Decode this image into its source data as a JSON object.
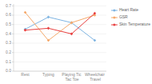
{
  "chart_data": {
    "type": "line",
    "categories": [
      "Rest",
      "Typing",
      "Playing Tic Tac Toe",
      "Wheelchair Travel"
    ],
    "series": [
      {
        "name": "Heart Rate",
        "color": "#7eb4e2",
        "marker": "diamond",
        "values": [
          0.45,
          0.58,
          0.52,
          0.33
        ]
      },
      {
        "name": "GSR",
        "color": "#f5a96b",
        "marker": "diamond",
        "values": [
          0.63,
          0.33,
          0.52,
          0.6
        ]
      },
      {
        "name": "Skin Temperature",
        "color": "#e84040",
        "marker": "diamond",
        "values": [
          0.44,
          0.46,
          0.4,
          0.62
        ]
      }
    ],
    "ylim": [
      0.0,
      0.72
    ],
    "yticks": [
      {
        "value": 0,
        "label": "0.0"
      },
      0.1,
      0.2,
      0.3,
      0.4,
      0.5,
      0.6,
      0.7
    ],
    "grid": true,
    "legend": "right"
  }
}
